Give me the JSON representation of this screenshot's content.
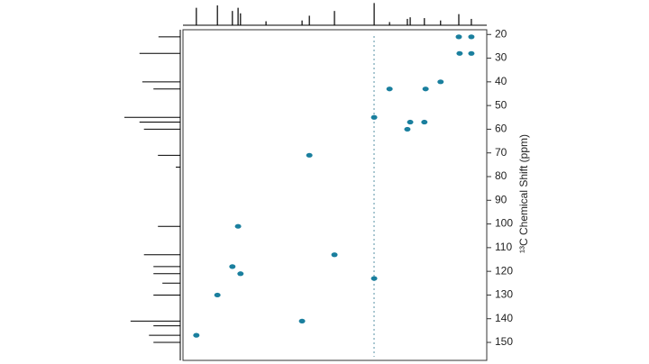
{
  "chart_data": {
    "type": "scatter",
    "y_label": "¹³C Chemical Shift (ppm)",
    "x": [
      1.19,
      0.88,
      1.17,
      0.88,
      1.64,
      2.01,
      2.9,
      2.39,
      2.04,
      2.46,
      3.28,
      4.88,
      6.64,
      4.26,
      6.78,
      6.58,
      7.15,
      5.06,
      7.67,
      3.28
    ],
    "values": [
      21,
      21,
      28,
      28,
      40,
      43,
      43,
      57,
      57,
      60,
      55,
      71,
      101,
      113,
      118,
      121,
      130,
      141,
      147,
      123
    ],
    "color": "#1a7f9e",
    "xlim": [
      8,
      0.5
    ],
    "ylim": [
      157.6,
      18
    ],
    "yticks": [
      20,
      30,
      40,
      50,
      60,
      70,
      80,
      90,
      100,
      110,
      120,
      130,
      140,
      150
    ],
    "x_projection": {
      "x": [
        7.67,
        7.15,
        6.78,
        6.64,
        6.58,
        5.95,
        5.06,
        4.88,
        4.26,
        3.28,
        2.9,
        2.46,
        2.39,
        2.04,
        1.64,
        1.19,
        0.88
      ],
      "values": [
        88,
        100,
        72,
        88,
        60,
        20,
        24,
        48,
        72,
        112,
        16,
        32,
        40,
        36,
        24,
        56,
        32
      ]
    },
    "y_projection": {
      "y": [
        21,
        28,
        40,
        43,
        55,
        57,
        60,
        71,
        76,
        101,
        113,
        118,
        121,
        125,
        130,
        141,
        143,
        147,
        150
      ],
      "values": [
        39,
        73,
        68,
        48,
        100,
        73,
        65,
        40,
        8,
        40,
        65,
        48,
        48,
        32,
        48,
        89,
        48,
        56,
        48
      ]
    }
  }
}
